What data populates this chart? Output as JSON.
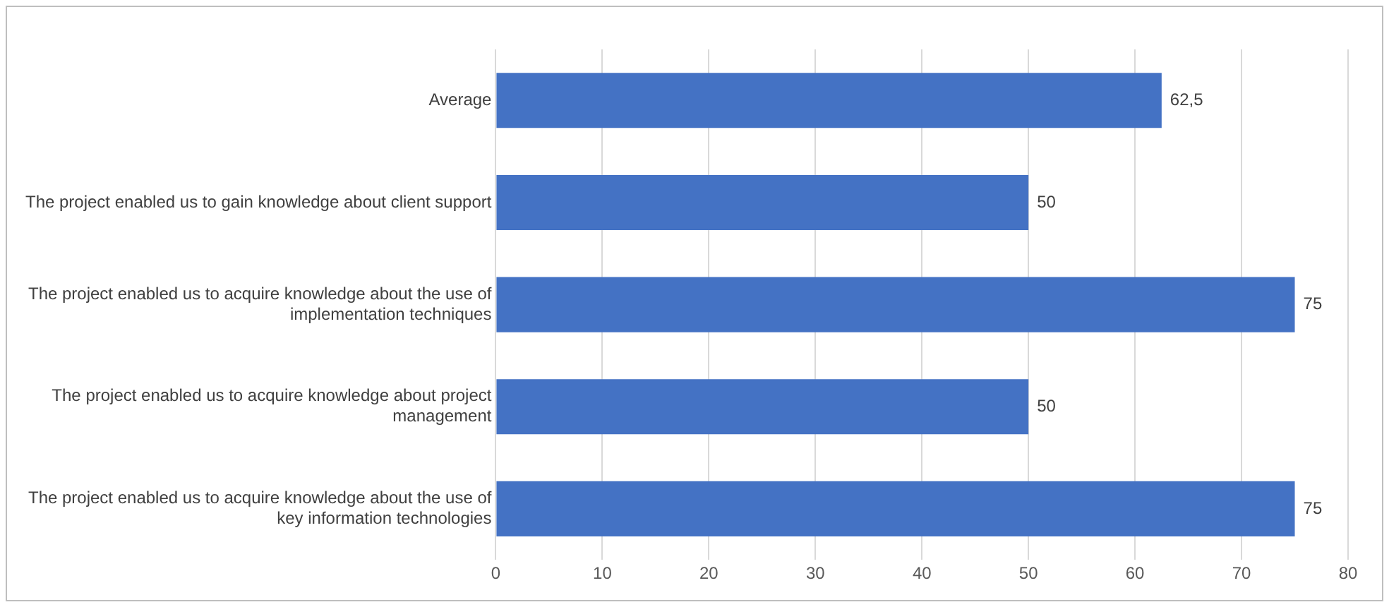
{
  "chart_data": {
    "type": "bar",
    "orientation": "horizontal",
    "categories": [
      "Average",
      "The project enabled us to gain knowledge about client support",
      "The project enabled us to acquire knowledge about the use of implementation techniques",
      "The project enabled us to acquire knowledge about project management",
      "The project enabled us to acquire knowledge about the use of key information technologies"
    ],
    "values": [
      62.5,
      50,
      75,
      50,
      75
    ],
    "value_labels": [
      "62,5",
      "50",
      "75",
      "50",
      "75"
    ],
    "color": "#4472c4",
    "xlim": [
      0,
      80
    ],
    "xticks": [
      0,
      10,
      20,
      30,
      40,
      50,
      60,
      70,
      80
    ],
    "grid": "x",
    "legend": false
  }
}
